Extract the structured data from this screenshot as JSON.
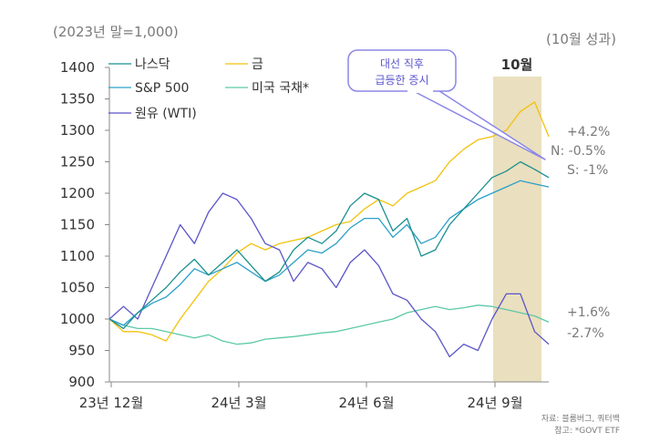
{
  "chart_data": {
    "type": "line",
    "title": "",
    "subtitle": "(2023년 말=1,000)",
    "period_label": "(10월 성과)",
    "ylim": [
      900,
      1400
    ],
    "yticks": [
      900,
      950,
      1000,
      1050,
      1100,
      1150,
      1200,
      1250,
      1300,
      1350,
      1400
    ],
    "xlabels": [
      "23년 12월",
      "24년 3월",
      "24년 6월",
      "24년 9월"
    ],
    "highlight": {
      "label": "10월",
      "color": "#eadfbe"
    },
    "callout": {
      "line1": "대선 직후",
      "line2": "급등한 증시",
      "border": "#8b87e6",
      "text_color": "#5a55cc"
    },
    "source": {
      "line1": "자료: 블룸버그, 쿼터백",
      "line2": "참고: *GOVT ETF"
    },
    "perf_labels": {
      "gold": "+4.2%",
      "nasdaq": "N: -0.5%",
      "sp500": "S: -1%",
      "treasury": "+1.6%",
      "oil": "-2.7%"
    },
    "legend": [
      {
        "name": "나스닥",
        "color": "#1a8f8f"
      },
      {
        "name": "금",
        "color": "#f2c20c"
      },
      {
        "name": "S&P 500",
        "color": "#2aa0c8"
      },
      {
        "name": "미국 국채*",
        "color": "#5cc9a7"
      },
      {
        "name": "원유 (WTI)",
        "color": "#5b55c8"
      }
    ],
    "series": [
      {
        "name": "나스닥",
        "color": "#1a8f8f",
        "values": [
          1000,
          985,
          1010,
          1030,
          1050,
          1075,
          1095,
          1070,
          1090,
          1110,
          1085,
          1060,
          1075,
          1110,
          1130,
          1120,
          1140,
          1180,
          1200,
          1190,
          1140,
          1160,
          1100,
          1110,
          1150,
          1175,
          1200,
          1225,
          1235,
          1250,
          1238,
          1225
        ]
      },
      {
        "name": "금",
        "color": "#f2c20c",
        "values": [
          1000,
          980,
          980,
          975,
          965,
          1000,
          1030,
          1060,
          1080,
          1105,
          1120,
          1110,
          1120,
          1125,
          1130,
          1140,
          1150,
          1155,
          1175,
          1190,
          1180,
          1200,
          1210,
          1220,
          1250,
          1270,
          1285,
          1290,
          1300,
          1330,
          1345,
          1290
        ]
      },
      {
        "name": "S&P 500",
        "color": "#2aa0c8",
        "values": [
          1000,
          990,
          1010,
          1025,
          1035,
          1055,
          1080,
          1070,
          1080,
          1090,
          1075,
          1060,
          1070,
          1090,
          1110,
          1105,
          1120,
          1145,
          1160,
          1160,
          1130,
          1150,
          1120,
          1130,
          1160,
          1175,
          1190,
          1200,
          1210,
          1220,
          1215,
          1210
        ]
      },
      {
        "name": "미국 국채*",
        "color": "#5cc9a7",
        "values": [
          1000,
          990,
          985,
          985,
          980,
          975,
          970,
          975,
          965,
          960,
          962,
          968,
          970,
          972,
          975,
          978,
          980,
          985,
          990,
          995,
          1000,
          1010,
          1015,
          1020,
          1015,
          1018,
          1022,
          1020,
          1015,
          1010,
          1005,
          995
        ]
      },
      {
        "name": "원유 (WTI)",
        "color": "#5b55c8",
        "values": [
          1000,
          1020,
          1000,
          1050,
          1100,
          1150,
          1120,
          1170,
          1200,
          1190,
          1160,
          1120,
          1110,
          1060,
          1090,
          1080,
          1050,
          1090,
          1110,
          1085,
          1040,
          1030,
          1000,
          980,
          940,
          960,
          950,
          1000,
          1040,
          1040,
          980,
          960
        ]
      }
    ]
  }
}
